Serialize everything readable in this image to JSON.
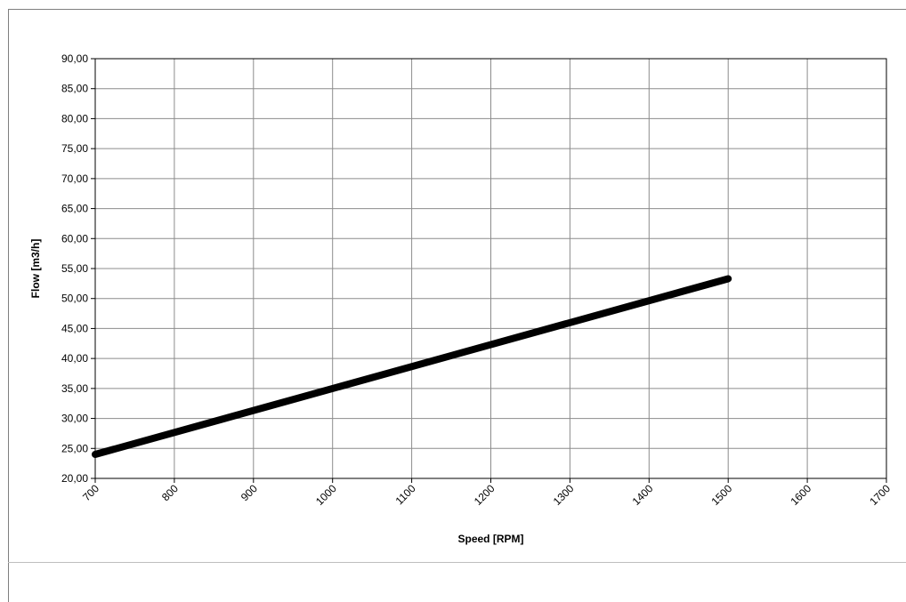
{
  "chart_data": {
    "type": "line",
    "title": "",
    "xlabel": "Speed [RPM]",
    "ylabel": "Flow [m3/h]",
    "xlim": [
      700,
      1700
    ],
    "ylim": [
      20,
      90
    ],
    "x_ticks": [
      "700",
      "800",
      "900",
      "1000",
      "1100",
      "1200",
      "1300",
      "1400",
      "1500",
      "1600",
      "1700"
    ],
    "y_ticks": [
      "20,00",
      "25,00",
      "30,00",
      "35,00",
      "40,00",
      "45,00",
      "50,00",
      "55,00",
      "60,00",
      "65,00",
      "70,00",
      "75,00",
      "80,00",
      "85,00",
      "90,00"
    ],
    "grid": true,
    "legend": "none",
    "series": [
      {
        "color": "#000000",
        "x": [
          700,
          1500
        ],
        "y": [
          24.0,
          53.3
        ]
      }
    ]
  }
}
